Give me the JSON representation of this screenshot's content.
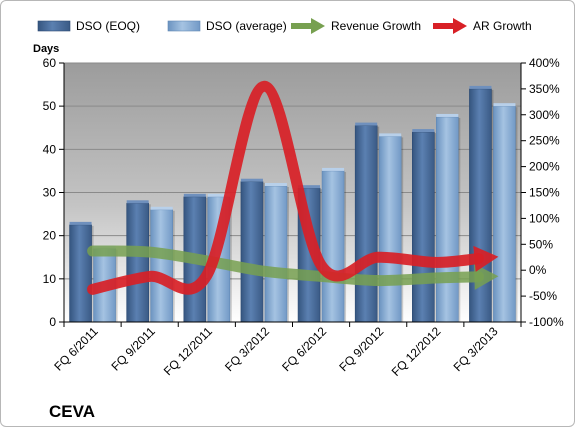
{
  "chart_data": {
    "type": "bar",
    "title": "",
    "company_label": "CEVA",
    "left_axis_label": "Days",
    "categories": [
      "FQ 6/2011",
      "FQ 9/2011",
      "FQ 12/2011",
      "FQ 3/2012",
      "FQ 6/2012",
      "FQ 9/2012",
      "FQ 12/2012",
      "FQ 3/2013"
    ],
    "left_axis": {
      "min": 0,
      "max": 60,
      "ticks": [
        "0",
        "10",
        "20",
        "30",
        "40",
        "50",
        "60"
      ]
    },
    "right_axis": {
      "min": -100,
      "max": 400,
      "ticks": [
        "-100%",
        "-50%",
        "0%",
        "50%",
        "100%",
        "150%",
        "200%",
        "250%",
        "300%",
        "350%",
        "400%"
      ]
    },
    "bar_series": [
      {
        "name": "DSO (EOQ)",
        "color": "#4a6d9f",
        "values": [
          22.5,
          27.5,
          29,
          32.5,
          31,
          45.5,
          44,
          54
        ]
      },
      {
        "name": "DSO (average)",
        "color": "#7ea5cf",
        "values": [
          17,
          26,
          29,
          31.5,
          35,
          43,
          47.5,
          50
        ]
      }
    ],
    "line_series": [
      {
        "name": "Revenue Growth",
        "color": "#77a050",
        "axis": "right",
        "values": [
          37,
          35,
          18,
          -2,
          -12,
          -20,
          -15,
          -12
        ]
      },
      {
        "name": "AR Growth",
        "color": "#d82026",
        "axis": "right",
        "values": [
          -37,
          -12,
          -10,
          355,
          10,
          25,
          15,
          25
        ]
      }
    ],
    "legend_position": "top",
    "grid": true
  }
}
